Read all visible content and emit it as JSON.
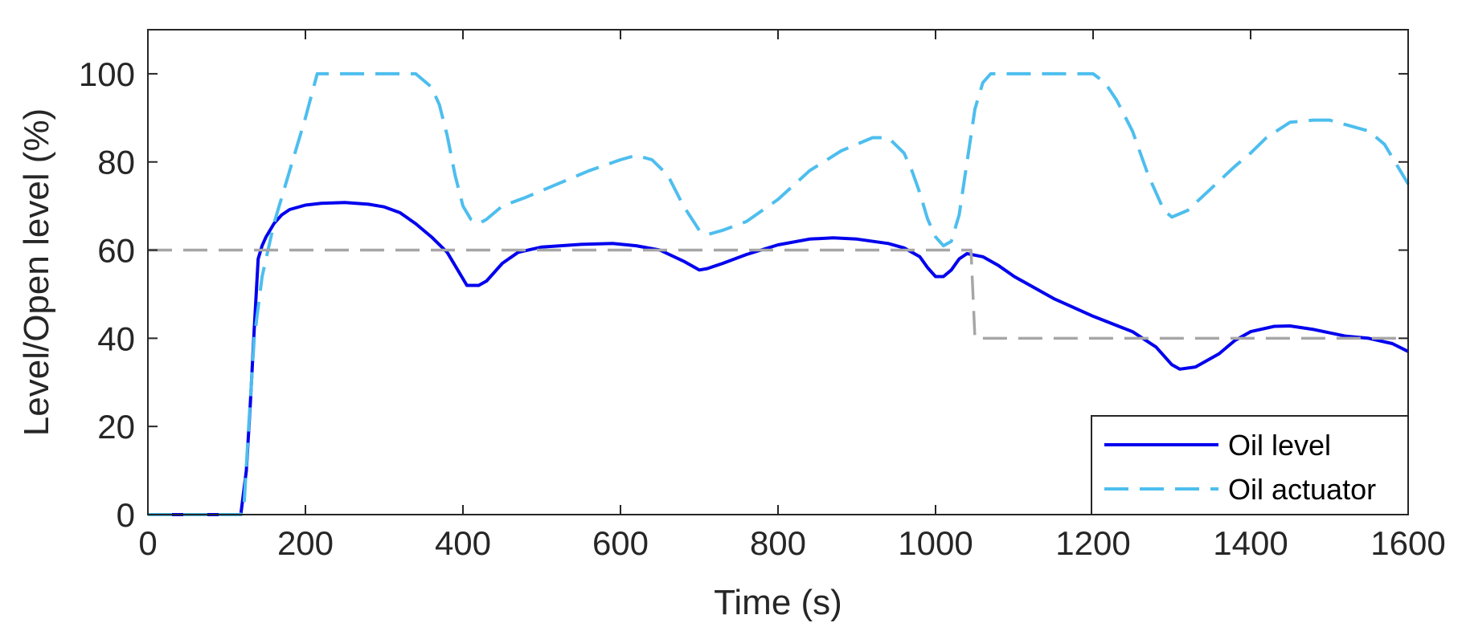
{
  "chart_data": {
    "type": "line",
    "title": "",
    "xlabel": "Time (s)",
    "ylabel": "Level/Open level (%)",
    "xlim": [
      0,
      1600
    ],
    "ylim": [
      0,
      110
    ],
    "xticks": [
      0,
      200,
      400,
      600,
      800,
      1000,
      1200,
      1400,
      1600
    ],
    "yticks": [
      0,
      20,
      40,
      60,
      80,
      100
    ],
    "grid": false,
    "legend_position": "bottom-right",
    "series": [
      {
        "name": "Oil level",
        "style": "solid",
        "color": "#0000ee",
        "x": [
          0,
          115,
          118,
          125,
          130,
          135,
          140,
          145,
          150,
          160,
          170,
          180,
          200,
          220,
          250,
          280,
          300,
          320,
          340,
          360,
          380,
          395,
          405,
          420,
          430,
          440,
          450,
          470,
          500,
          550,
          590,
          620,
          650,
          680,
          700,
          710,
          730,
          760,
          800,
          840,
          870,
          900,
          940,
          960,
          980,
          990,
          1000,
          1010,
          1020,
          1030,
          1040,
          1060,
          1080,
          1100,
          1150,
          1200,
          1250,
          1280,
          1300,
          1310,
          1330,
          1360,
          1380,
          1400,
          1430,
          1450,
          1480,
          1520,
          1550,
          1580,
          1600
        ],
        "y": [
          0,
          0,
          0,
          10,
          25,
          42,
          58,
          61,
          63,
          66,
          68,
          69.2,
          70.2,
          70.6,
          70.8,
          70.4,
          69.8,
          68.5,
          66,
          63,
          59.5,
          55,
          52,
          52,
          53,
          55,
          57,
          59.5,
          60.7,
          61.3,
          61.5,
          61,
          60,
          57.5,
          55.5,
          55.8,
          57,
          59,
          61.2,
          62.5,
          62.8,
          62.5,
          61.5,
          60.5,
          58.5,
          56,
          54,
          54,
          55.5,
          58,
          59.2,
          58.5,
          56.5,
          54,
          49,
          45,
          41.5,
          38,
          34,
          33,
          33.5,
          36.5,
          39.5,
          41.5,
          42.7,
          42.8,
          42,
          40.5,
          40,
          38.8,
          37
        ]
      },
      {
        "name": "Oil actuator",
        "style": "dashed",
        "color": "#4dbeee",
        "x": [
          0,
          118,
          122,
          128,
          135,
          145,
          160,
          180,
          200,
          215,
          240,
          300,
          340,
          360,
          370,
          380,
          390,
          400,
          410,
          420,
          430,
          450,
          480,
          520,
          560,
          600,
          620,
          640,
          660,
          680,
          700,
          710,
          730,
          760,
          800,
          840,
          880,
          920,
          940,
          960,
          970,
          980,
          990,
          1000,
          1010,
          1020,
          1030,
          1040,
          1050,
          1060,
          1070,
          1100,
          1150,
          1200,
          1215,
          1230,
          1250,
          1270,
          1290,
          1300,
          1320,
          1350,
          1380,
          1400,
          1420,
          1450,
          1480,
          1500,
          1520,
          1550,
          1570,
          1590,
          1600
        ],
        "y": [
          0,
          0,
          2,
          20,
          40,
          54,
          66,
          78,
          90,
          100,
          100,
          100,
          100,
          97,
          93,
          86,
          77,
          70,
          67,
          66,
          67,
          70,
          72,
          75,
          78,
          80.5,
          81.5,
          80.5,
          77,
          70,
          64.5,
          63.5,
          64.5,
          66.5,
          71.5,
          78,
          82.5,
          85.5,
          85.5,
          82,
          78,
          73,
          67,
          63,
          61,
          62,
          68,
          80,
          92,
          98,
          100,
          100,
          100,
          100,
          98,
          94,
          87,
          77,
          69,
          67.5,
          69,
          74,
          79,
          82,
          85.5,
          89,
          89.5,
          89.5,
          88.5,
          87,
          84,
          78,
          75
        ]
      },
      {
        "name": "",
        "style": "dashed",
        "color": "#a6a6a6",
        "x": [
          0,
          1045,
          1050,
          1600
        ],
        "y": [
          60,
          60,
          40,
          40
        ]
      }
    ],
    "legend": [
      {
        "label": "Oil level",
        "style": "solid",
        "color": "#0000ee"
      },
      {
        "label": "Oil actuator",
        "style": "dashed",
        "color": "#4dbeee"
      }
    ]
  }
}
